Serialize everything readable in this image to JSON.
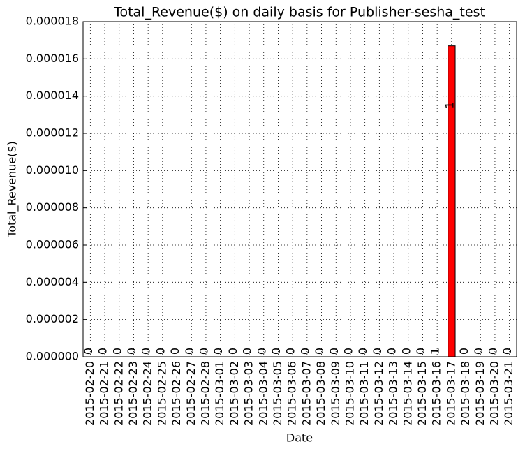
{
  "chart_data": {
    "type": "bar",
    "title": "Total_Revenue($) on daily basis for Publisher-sesha_test",
    "x_label": "Date",
    "y_label": "Total_Revenue($)",
    "categories": [
      "2015-02-20",
      "2015-02-21",
      "2015-02-22",
      "2015-02-23",
      "2015-02-24",
      "2015-02-25",
      "2015-02-26",
      "2015-02-27",
      "2015-02-28",
      "2015-03-01",
      "2015-03-02",
      "2015-03-03",
      "2015-03-04",
      "2015-03-05",
      "2015-03-06",
      "2015-03-07",
      "2015-03-08",
      "2015-03-09",
      "2015-03-10",
      "2015-03-11",
      "2015-03-12",
      "2015-03-13",
      "2015-03-14",
      "2015-03-15",
      "2015-03-16",
      "2015-03-17",
      "2015-03-18",
      "2015-03-19",
      "2015-03-20",
      "2015-03-21"
    ],
    "values": [
      0,
      0,
      0,
      0,
      0,
      0,
      0,
      0,
      0,
      0,
      0,
      0,
      0,
      0,
      0,
      0,
      0,
      0,
      0,
      0,
      0,
      0,
      0,
      0,
      0,
      1.67e-05,
      0,
      0,
      0,
      0
    ],
    "annotations": [
      "0",
      "0",
      "0",
      "0",
      "0",
      "0",
      "0",
      "0",
      "0",
      "0",
      "0",
      "0",
      "0",
      "0",
      "0",
      "0",
      "0",
      "0",
      "0",
      "0",
      "0",
      "0",
      "0",
      "0",
      "1",
      "1",
      "0",
      "0",
      "0",
      "0"
    ],
    "color": "#ff0000",
    "ylim": [
      0,
      1.8e-05
    ],
    "yticks": [
      {
        "value": 0,
        "label": "0.000000"
      },
      {
        "value": 2e-06,
        "label": "0.000002"
      },
      {
        "value": 4e-06,
        "label": "0.000004"
      },
      {
        "value": 6e-06,
        "label": "0.000006"
      },
      {
        "value": 8e-06,
        "label": "0.000008"
      },
      {
        "value": 1e-05,
        "label": "0.000010"
      },
      {
        "value": 1.2e-05,
        "label": "0.000012"
      },
      {
        "value": 1.4e-05,
        "label": "0.000014"
      },
      {
        "value": 1.6e-05,
        "label": "0.000016"
      },
      {
        "value": 1.8e-05,
        "label": "0.000018"
      }
    ],
    "grid": true
  }
}
